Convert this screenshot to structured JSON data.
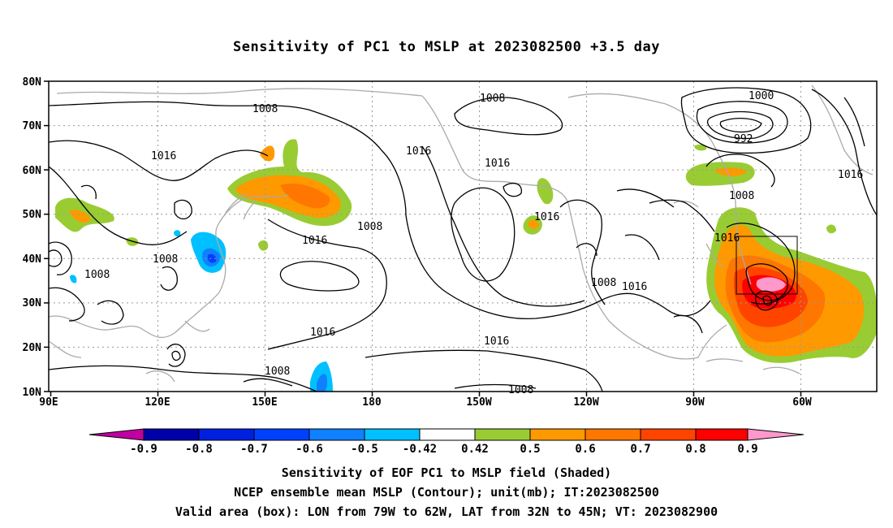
{
  "title": "Sensitivity of PC1 to MSLP at 2023082500 +3.5 day",
  "lat_labels": [
    "80N",
    "70N",
    "60N",
    "50N",
    "40N",
    "30N",
    "20N",
    "10N"
  ],
  "lon_labels": [
    "90E",
    "120E",
    "150E",
    "180",
    "150W",
    "120W",
    "90W",
    "60W"
  ],
  "contour_labels": [
    "1008",
    "1016",
    "1008",
    "1016",
    "1016",
    "1016",
    "1008",
    "1008",
    "1016",
    "1008",
    "1016",
    "1016",
    "1008",
    "1016",
    "1016",
    "1008",
    "1008",
    "1016",
    "1000",
    "992",
    "1008",
    "1016",
    "1016"
  ],
  "colorbar": {
    "labels": [
      "-0.9",
      "-0.8",
      "-0.7",
      "-0.6",
      "-0.5",
      "-0.42",
      "0.42",
      "0.5",
      "0.6",
      "0.7",
      "0.8",
      "0.9"
    ],
    "colors": [
      "#c000a0",
      "#0000a8",
      "#0020e0",
      "#0040ff",
      "#1080ff",
      "#00c0ff",
      "#ffffff",
      "#99cc33",
      "#ff9900",
      "#ff7700",
      "#ff4400",
      "#ff0000",
      "#ff99cc"
    ]
  },
  "footer": {
    "line1": "Sensitivity of EOF PC1 to MSLP field (Shaded)",
    "line2": "NCEP ensemble mean MSLP (Contour); unit(mb); IT:2023082500",
    "line3": "Valid area (box): LON from 79W to 62W, LAT from 32N to 45N; VT: 2023082900"
  }
}
